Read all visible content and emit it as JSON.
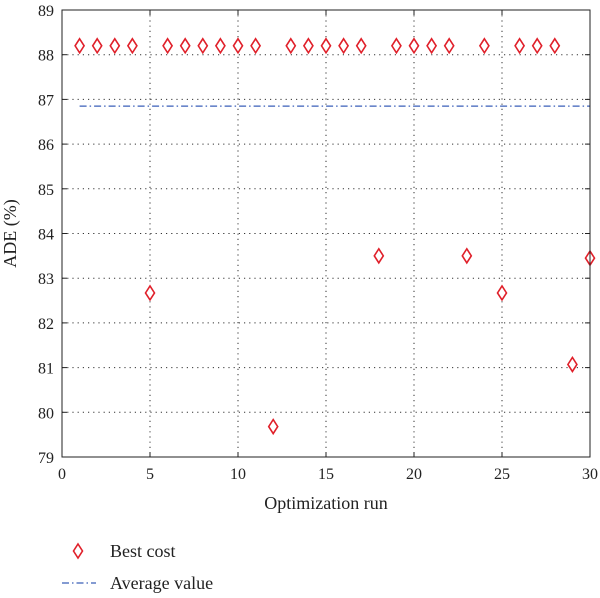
{
  "chart_data": {
    "type": "scatter",
    "xlabel": "Optimization run",
    "ylabel": "ADE (%)",
    "xlim": [
      0,
      30
    ],
    "ylim": [
      79,
      89
    ],
    "xticks": [
      0,
      5,
      10,
      15,
      20,
      25,
      30
    ],
    "yticks": [
      79,
      80,
      81,
      82,
      83,
      84,
      85,
      86,
      87,
      88,
      89
    ],
    "grid": true,
    "legend_position": "bottom-left, below plot",
    "series": [
      {
        "name": "Best cost",
        "marker": "diamond",
        "color": "#e0202a",
        "x": [
          1,
          2,
          3,
          4,
          5,
          6,
          7,
          8,
          9,
          10,
          11,
          12,
          13,
          14,
          15,
          16,
          17,
          18,
          19,
          20,
          21,
          22,
          23,
          24,
          25,
          26,
          27,
          28,
          29,
          30
        ],
        "y": [
          88.2,
          88.2,
          88.2,
          88.2,
          82.67,
          88.2,
          88.2,
          88.2,
          88.2,
          88.2,
          88.2,
          79.68,
          88.2,
          88.2,
          88.2,
          88.2,
          88.2,
          83.5,
          88.2,
          88.2,
          88.2,
          88.2,
          83.5,
          88.2,
          82.67,
          88.2,
          88.2,
          88.2,
          81.07,
          83.45
        ]
      },
      {
        "name": "Average value",
        "line_style": "dash-dot",
        "color": "#3a5fb8",
        "x": [
          1,
          30
        ],
        "y": [
          86.85,
          86.85
        ]
      }
    ]
  }
}
